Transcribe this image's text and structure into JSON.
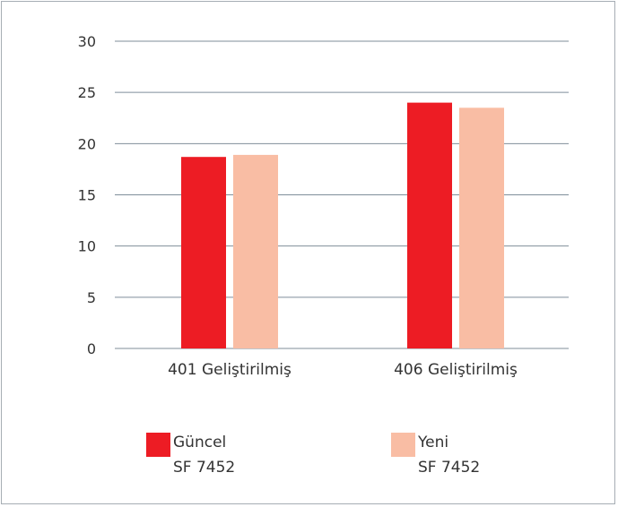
{
  "chart_data": {
    "type": "bar",
    "categories": [
      "401 Geliştirilmiş",
      "406 Geliştirilmiş"
    ],
    "series": [
      {
        "name": "Güncel SF 7452",
        "color": "#ed1c24",
        "values": [
          18.7,
          24.0
        ]
      },
      {
        "name": "Yeni SF 7452",
        "color": "#f9bda4",
        "values": [
          18.9,
          23.5
        ]
      }
    ],
    "ylim": [
      0,
      30
    ],
    "yticks": [
      "0",
      "5",
      "10",
      "15",
      "20",
      "25",
      "30"
    ],
    "grid": true,
    "legend_position": "bottom",
    "legend": [
      {
        "line1": "Güncel",
        "line2": "SF 7452",
        "color": "#ed1c24"
      },
      {
        "line1": "Yeni",
        "line2": "SF 7452",
        "color": "#f9bda4"
      }
    ]
  }
}
